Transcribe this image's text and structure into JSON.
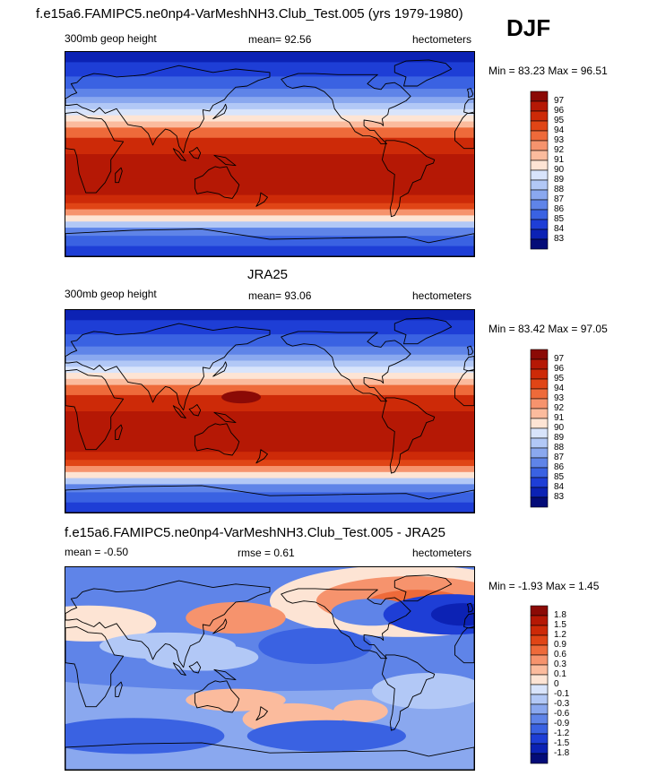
{
  "page": {
    "title": "f.e15a6.FAMIPC5.ne0np4-VarMeshNH3.Club_Test.005 (yrs 1979-1980)",
    "season": "DJF"
  },
  "panels": [
    {
      "id": "model",
      "title": "",
      "left_label": "300mb geop height",
      "center_label": "mean=  92.56",
      "right_label": "hectometers",
      "minmax": "Min =  83.23 Max =  96.51",
      "colorbar_labels": [
        "97",
        "96",
        "95",
        "94",
        "93",
        "92",
        "91",
        "90",
        "89",
        "88",
        "87",
        "86",
        "85",
        "84",
        "83"
      ],
      "colorbar_colors": [
        "#8b0a06",
        "#b51805",
        "#cd2a08",
        "#e04516",
        "#ee6a3a",
        "#f6936d",
        "#fbbb9d",
        "#fde4d4",
        "#d8e4fb",
        "#b2c8f6",
        "#8aa8ef",
        "#5f84e8",
        "#3a62e2",
        "#1e3ed6",
        "#0c22b4",
        "#040c78"
      ],
      "belt_peak": 0.97
    },
    {
      "id": "obs",
      "title": "JRA25",
      "left_label": "300mb geop height",
      "center_label": "mean=  93.06",
      "right_label": "hectometers",
      "minmax": "Min =  83.42 Max =  97.05",
      "colorbar_labels": [
        "97",
        "96",
        "95",
        "94",
        "93",
        "92",
        "91",
        "90",
        "89",
        "88",
        "87",
        "86",
        "85",
        "84",
        "83"
      ],
      "colorbar_colors": [
        "#8b0a06",
        "#b51805",
        "#cd2a08",
        "#e04516",
        "#ee6a3a",
        "#f6936d",
        "#fbbb9d",
        "#fde4d4",
        "#d8e4fb",
        "#b2c8f6",
        "#8aa8ef",
        "#5f84e8",
        "#3a62e2",
        "#1e3ed6",
        "#0c22b4",
        "#040c78"
      ],
      "belt_peak": 0.98
    },
    {
      "id": "diff",
      "title": "f.e15a6.FAMIPC5.ne0np4-VarMeshNH3.Club_Test.005 - JRA25",
      "left_label": "mean =  -0.50",
      "center_label": "rmse =   0.61",
      "right_label": "hectometers",
      "minmax": "Min =  -1.93 Max =    1.45",
      "colorbar_labels": [
        "1.8",
        "1.5",
        "1.2",
        "0.9",
        "0.6",
        "0.3",
        "0.1",
        "0",
        "-0.1",
        "-0.3",
        "-0.6",
        "-0.9",
        "-1.2",
        "-1.5",
        "-1.8"
      ],
      "colorbar_colors": [
        "#8b0a06",
        "#b51805",
        "#cd2a08",
        "#e04516",
        "#ee6a3a",
        "#f6936d",
        "#fbbb9d",
        "#fde4d4",
        "#d8e4fb",
        "#b2c8f6",
        "#8aa8ef",
        "#5f84e8",
        "#3a62e2",
        "#1e3ed6",
        "#0c22b4",
        "#040c78"
      ]
    }
  ],
  "chart_data": {
    "type": "heatmap",
    "variable": "300mb geop height",
    "units": "hectometers",
    "season": "DJF",
    "panels": [
      {
        "name": "f.e15a6.FAMIPC5.ne0np4-VarMeshNH3.Club_Test.005",
        "mean": 92.56,
        "min": 83.23,
        "max": 96.51,
        "levels": [
          83,
          84,
          85,
          86,
          87,
          88,
          89,
          90,
          91,
          92,
          93,
          94,
          95,
          96,
          97
        ]
      },
      {
        "name": "JRA25",
        "mean": 93.06,
        "min": 83.42,
        "max": 97.05,
        "levels": [
          83,
          84,
          85,
          86,
          87,
          88,
          89,
          90,
          91,
          92,
          93,
          94,
          95,
          96,
          97
        ]
      },
      {
        "name": "f.e15a6.FAMIPC5.ne0np4-VarMeshNH3.Club_Test.005 - JRA25",
        "mean": -0.5,
        "rmse": 0.61,
        "min": -1.93,
        "max": 1.45,
        "levels": [
          -1.8,
          -1.5,
          -1.2,
          -0.9,
          -0.6,
          -0.3,
          -0.1,
          0,
          0.1,
          0.3,
          0.6,
          0.9,
          1.2,
          1.5,
          1.8
        ]
      }
    ]
  }
}
